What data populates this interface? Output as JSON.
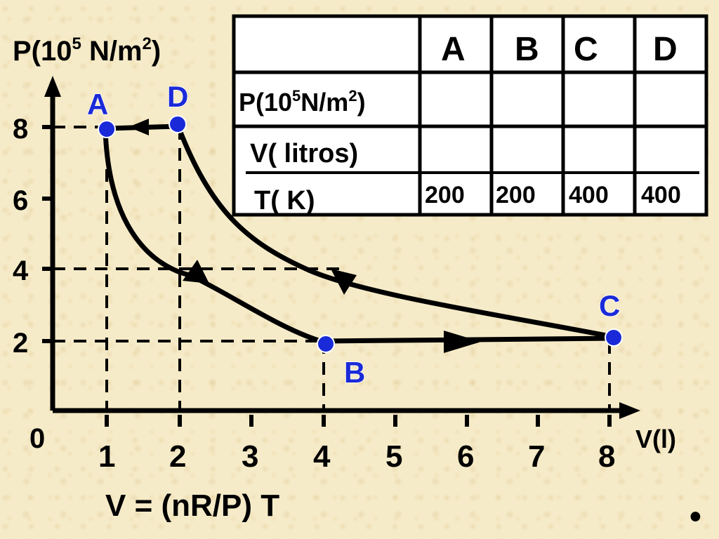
{
  "axes": {
    "y_label_prefix": "P(10",
    "y_label_exp": "5",
    "y_label_mid": " N/m",
    "y_label_exp2": "2",
    "y_label_suffix": ")",
    "x_label": "V(l)",
    "origin": "0",
    "y_ticks": [
      "2",
      "4",
      "6",
      "8"
    ],
    "x_ticks": [
      "1",
      "2",
      "3",
      "4",
      "5",
      "6",
      "7",
      "8"
    ]
  },
  "formula": "V = (nR/P) T",
  "points": {
    "A": {
      "label": "A",
      "V": 1,
      "P": 8
    },
    "B": {
      "label": "B",
      "V": 4,
      "P": 2
    },
    "C": {
      "label": "C",
      "V": 8,
      "P": 2
    },
    "D": {
      "label": "D",
      "V": 2,
      "P": 8
    }
  },
  "table": {
    "headers": [
      "A",
      "B",
      "C",
      "D"
    ],
    "row_p_prefix": "P(10",
    "row_p_exp": "5",
    "row_p_mid": "N/m",
    "row_p_exp2": "2",
    "row_p_suffix": ")",
    "row_v": "V( litros)",
    "row_t": "T( K)",
    "t_values": [
      "200",
      "200",
      "400",
      "400"
    ]
  },
  "colors": {
    "point": "#1a2ad8",
    "ink": "#000000",
    "background": "#f6ebc8"
  },
  "bullet": "•"
}
